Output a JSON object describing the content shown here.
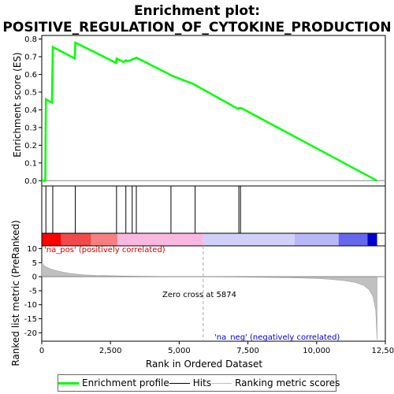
{
  "chart_data": {
    "type": "line",
    "title_line1": "Enrichment plot:",
    "title_line2": "POSITIVE_REGULATION_OF_CYTOKINE_PRODUCTION",
    "es_panel": {
      "ylabel": "Enrichment score (ES)",
      "ylim": [
        -0.03,
        0.82
      ],
      "yticks": [
        "0.0",
        "0.1",
        "0.2",
        "0.3",
        "0.4",
        "0.5",
        "0.6",
        "0.7",
        "0.8"
      ],
      "ytick_values": [
        0.0,
        0.1,
        0.2,
        0.3,
        0.4,
        0.5,
        0.6,
        0.7,
        0.8
      ],
      "series": [
        {
          "name": "Enrichment profile",
          "color": "#00ff00",
          "x": [
            0,
            130,
            150,
            370,
            400,
            1200,
            1220,
            2700,
            2720,
            2980,
            3060,
            3080,
            3250,
            3290,
            3400,
            3440,
            4650,
            4700,
            5540,
            5580,
            7150,
            7170,
            7230,
            7260,
            12200
          ],
          "y": [
            0.0,
            0.0,
            0.46,
            0.44,
            0.755,
            0.69,
            0.78,
            0.665,
            0.69,
            0.67,
            0.68,
            0.675,
            0.68,
            0.685,
            0.69,
            0.695,
            0.6,
            0.595,
            0.545,
            0.54,
            0.405,
            0.41,
            0.41,
            0.41,
            0.0
          ]
        }
      ]
    },
    "hits": {
      "name": "Hits",
      "positions": [
        150,
        400,
        1220,
        2720,
        3060,
        3290,
        3440,
        4700,
        5580,
        7170,
        7230
      ]
    },
    "heatmap_colors": [
      "#ff0000",
      "#f04a4a",
      "#f58080",
      "#f8b8e0",
      "#d0d0f8",
      "#b8b8f8",
      "#6666ee",
      "#0000cc"
    ],
    "heatmap_breaks": [
      0,
      700,
      1800,
      2750,
      5874,
      9200,
      10800,
      11850,
      12200
    ],
    "metric_panel": {
      "ylabel": "Ranked list metric (PreRanked)",
      "ylim": [
        -23,
        11
      ],
      "yticks": [
        "10",
        "5",
        "0",
        "-5",
        "-10",
        "-15",
        "-20"
      ],
      "ytick_values": [
        10,
        5,
        0,
        -5,
        -10,
        -15,
        -20
      ],
      "series_name": "Ranking metric scores",
      "color": "#c0c0c0",
      "x": [
        0,
        100,
        300,
        600,
        1000,
        1500,
        2000,
        3000,
        4000,
        5000,
        5874,
        7000,
        8000,
        9000,
        10000,
        10500,
        11000,
        11400,
        11700,
        11900,
        12050,
        12150,
        12200
      ],
      "y": [
        5,
        3.8,
        2.8,
        2.0,
        1.2,
        0.7,
        0.45,
        0.25,
        0.12,
        0.05,
        0,
        -0.1,
        -0.2,
        -0.35,
        -0.6,
        -0.9,
        -1.4,
        -2.0,
        -3.0,
        -4.5,
        -7,
        -12,
        -22.5
      ]
    },
    "xaxis": {
      "label": "Rank in Ordered Dataset",
      "xlim": [
        0,
        12500
      ],
      "ticks": [
        "0",
        "2,500",
        "5,000",
        "7,500",
        "10,000",
        "12,500"
      ],
      "tick_values": [
        0,
        2500,
        5000,
        7500,
        10000,
        12500
      ]
    },
    "annotations": {
      "pos_label": "'na_pos' (positively correlated)",
      "neg_label": "'na_neg' (negatively correlated)",
      "zero_cross": "Zero cross at 5874",
      "zero_cross_value": 5874,
      "pos_color": "#cc0000",
      "neg_color": "#0000cc"
    },
    "legend": {
      "items": [
        {
          "label": "Enrichment profile",
          "color": "#00ff00"
        },
        {
          "label": "Hits",
          "color": "#000000"
        },
        {
          "label": "Ranking metric scores",
          "color": "#c0c0c0"
        }
      ]
    }
  }
}
